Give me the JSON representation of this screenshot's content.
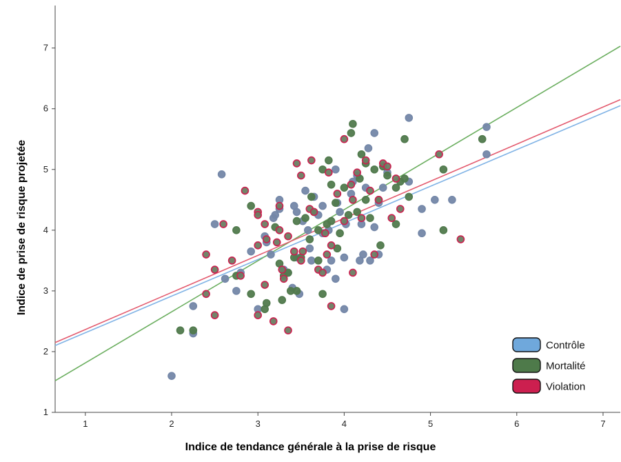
{
  "chart_data": {
    "type": "scatter",
    "xlabel": "Indice de tendance générale à la prise de risque",
    "ylabel": "Indice de prise de risque projetée",
    "xlim": [
      0.65,
      7.2
    ],
    "ylim": [
      1,
      7.7
    ],
    "x_ticks": [
      1,
      2,
      3,
      4,
      5,
      6,
      7
    ],
    "y_ticks": [
      1,
      2,
      3,
      4,
      5,
      6,
      7
    ],
    "grid": false,
    "legend": {
      "placement": "bottom-right",
      "entries": [
        {
          "name": "Contrôle",
          "color": "#6fa8dc"
        },
        {
          "name": "Mortalité",
          "color": "#4e7a4a"
        },
        {
          "name": "Violation",
          "color": "#cc1f4f"
        }
      ]
    },
    "series": [
      {
        "name": "Contrôle",
        "marker_fill": "#7487a8",
        "marker_edge": "#7487a8",
        "line_color": "#7fb2e5",
        "fit": [
          [
            0.65,
            2.1
          ],
          [
            7.2,
            6.05
          ]
        ],
        "points": [
          [
            2.0,
            1.6
          ],
          [
            2.25,
            2.3
          ],
          [
            2.25,
            2.75
          ],
          [
            2.5,
            4.1
          ],
          [
            2.58,
            4.92
          ],
          [
            2.62,
            3.2
          ],
          [
            2.75,
            3.0
          ],
          [
            2.8,
            3.3
          ],
          [
            2.92,
            3.65
          ],
          [
            3.0,
            2.7
          ],
          [
            3.08,
            3.9
          ],
          [
            3.1,
            3.8
          ],
          [
            3.15,
            3.6
          ],
          [
            3.18,
            4.2
          ],
          [
            3.2,
            4.25
          ],
          [
            3.25,
            4.5
          ],
          [
            3.25,
            4.35
          ],
          [
            3.3,
            3.35
          ],
          [
            3.35,
            3.3
          ],
          [
            3.4,
            3.05
          ],
          [
            3.42,
            4.4
          ],
          [
            3.45,
            4.3
          ],
          [
            3.45,
            3.55
          ],
          [
            3.48,
            2.95
          ],
          [
            3.52,
            4.15
          ],
          [
            3.55,
            4.65
          ],
          [
            3.58,
            4.0
          ],
          [
            3.6,
            3.7
          ],
          [
            3.62,
            3.5
          ],
          [
            3.65,
            4.55
          ],
          [
            3.7,
            4.25
          ],
          [
            3.75,
            3.95
          ],
          [
            3.75,
            4.4
          ],
          [
            3.8,
            3.35
          ],
          [
            3.82,
            4.0
          ],
          [
            3.85,
            3.5
          ],
          [
            3.9,
            3.2
          ],
          [
            3.9,
            5.0
          ],
          [
            3.92,
            4.45
          ],
          [
            3.95,
            4.3
          ],
          [
            4.0,
            2.7
          ],
          [
            4.0,
            3.55
          ],
          [
            4.02,
            4.1
          ],
          [
            4.08,
            4.6
          ],
          [
            4.1,
            4.8
          ],
          [
            4.15,
            4.9
          ],
          [
            4.18,
            3.5
          ],
          [
            4.2,
            4.1
          ],
          [
            4.22,
            3.6
          ],
          [
            4.25,
            4.7
          ],
          [
            4.28,
            5.35
          ],
          [
            4.3,
            3.5
          ],
          [
            4.35,
            4.05
          ],
          [
            4.4,
            3.6
          ],
          [
            4.4,
            4.45
          ],
          [
            4.45,
            4.7
          ],
          [
            4.5,
            4.95
          ],
          [
            4.35,
            5.6
          ],
          [
            4.75,
            4.8
          ],
          [
            4.75,
            5.85
          ],
          [
            4.9,
            4.35
          ],
          [
            4.9,
            3.95
          ],
          [
            5.05,
            4.5
          ],
          [
            5.25,
            4.5
          ],
          [
            5.65,
            5.7
          ],
          [
            5.65,
            5.25
          ]
        ]
      },
      {
        "name": "Mortalité",
        "marker_fill": "#517a4d",
        "marker_edge": "#517a4d",
        "line_color": "#6bae5f",
        "fit": [
          [
            0.65,
            1.52
          ],
          [
            7.2,
            7.03
          ]
        ],
        "points": [
          [
            2.1,
            2.35
          ],
          [
            2.25,
            2.35
          ],
          [
            2.75,
            4.0
          ],
          [
            2.75,
            3.25
          ],
          [
            2.92,
            4.4
          ],
          [
            2.92,
            2.95
          ],
          [
            3.08,
            2.7
          ],
          [
            3.1,
            2.8
          ],
          [
            3.2,
            4.05
          ],
          [
            3.25,
            3.45
          ],
          [
            3.28,
            2.85
          ],
          [
            3.3,
            3.25
          ],
          [
            3.35,
            3.3
          ],
          [
            3.38,
            3.0
          ],
          [
            3.42,
            3.55
          ],
          [
            3.45,
            3.0
          ],
          [
            3.45,
            4.15
          ],
          [
            3.5,
            3.55
          ],
          [
            3.55,
            4.2
          ],
          [
            3.6,
            3.85
          ],
          [
            3.62,
            4.55
          ],
          [
            3.65,
            4.3
          ],
          [
            3.7,
            4.0
          ],
          [
            3.7,
            3.5
          ],
          [
            3.75,
            5.0
          ],
          [
            3.75,
            2.95
          ],
          [
            3.8,
            4.1
          ],
          [
            3.82,
            5.15
          ],
          [
            3.85,
            4.75
          ],
          [
            3.85,
            4.15
          ],
          [
            3.9,
            4.45
          ],
          [
            3.92,
            3.7
          ],
          [
            3.95,
            3.95
          ],
          [
            4.0,
            4.7
          ],
          [
            4.05,
            4.25
          ],
          [
            4.08,
            5.6
          ],
          [
            4.1,
            5.75
          ],
          [
            4.15,
            4.3
          ],
          [
            4.18,
            4.85
          ],
          [
            4.2,
            5.25
          ],
          [
            4.25,
            4.5
          ],
          [
            4.25,
            5.1
          ],
          [
            4.3,
            4.2
          ],
          [
            4.35,
            5.0
          ],
          [
            4.4,
            4.5
          ],
          [
            4.42,
            3.75
          ],
          [
            4.45,
            5.05
          ],
          [
            4.5,
            4.9
          ],
          [
            4.6,
            4.7
          ],
          [
            4.6,
            4.1
          ],
          [
            4.65,
            4.8
          ],
          [
            4.7,
            5.5
          ],
          [
            4.75,
            4.55
          ],
          [
            4.7,
            4.85
          ],
          [
            5.15,
            5.0
          ],
          [
            5.15,
            4.0
          ],
          [
            5.6,
            5.5
          ]
        ]
      },
      {
        "name": "Violation",
        "marker_fill": "#6b7d62",
        "marker_edge": "#cc1f4f",
        "line_color": "#e35a6e",
        "fit": [
          [
            0.65,
            2.15
          ],
          [
            7.2,
            6.15
          ]
        ],
        "points": [
          [
            2.4,
            3.6
          ],
          [
            2.4,
            2.95
          ],
          [
            2.5,
            3.35
          ],
          [
            2.5,
            2.6
          ],
          [
            2.6,
            4.1
          ],
          [
            2.7,
            3.5
          ],
          [
            2.8,
            3.25
          ],
          [
            2.85,
            4.65
          ],
          [
            3.0,
            4.3
          ],
          [
            3.0,
            4.25
          ],
          [
            3.0,
            3.75
          ],
          [
            3.0,
            2.6
          ],
          [
            3.08,
            4.1
          ],
          [
            3.08,
            3.1
          ],
          [
            3.1,
            3.85
          ],
          [
            3.18,
            2.5
          ],
          [
            3.25,
            4.4
          ],
          [
            3.25,
            4.0
          ],
          [
            3.28,
            3.35
          ],
          [
            3.3,
            3.2
          ],
          [
            3.35,
            3.9
          ],
          [
            3.35,
            2.35
          ],
          [
            3.42,
            3.65
          ],
          [
            3.45,
            5.1
          ],
          [
            3.5,
            4.9
          ],
          [
            3.5,
            3.5
          ],
          [
            3.52,
            3.65
          ],
          [
            3.6,
            4.35
          ],
          [
            3.62,
            5.15
          ],
          [
            3.65,
            4.3
          ],
          [
            3.7,
            3.35
          ],
          [
            3.75,
            3.3
          ],
          [
            3.8,
            3.6
          ],
          [
            3.82,
            4.95
          ],
          [
            3.85,
            3.75
          ],
          [
            3.85,
            2.75
          ],
          [
            3.92,
            4.6
          ],
          [
            4.0,
            5.5
          ],
          [
            4.0,
            4.15
          ],
          [
            4.08,
            4.75
          ],
          [
            4.1,
            4.5
          ],
          [
            4.1,
            3.3
          ],
          [
            4.15,
            4.95
          ],
          [
            4.2,
            4.2
          ],
          [
            4.25,
            5.15
          ],
          [
            4.3,
            4.65
          ],
          [
            4.35,
            3.6
          ],
          [
            4.4,
            4.5
          ],
          [
            4.45,
            5.1
          ],
          [
            4.5,
            5.05
          ],
          [
            4.55,
            4.2
          ],
          [
            4.6,
            4.85
          ],
          [
            4.65,
            4.35
          ],
          [
            5.1,
            5.25
          ],
          [
            5.35,
            3.85
          ],
          [
            3.78,
            3.95
          ],
          [
            3.22,
            3.8
          ]
        ]
      }
    ]
  }
}
